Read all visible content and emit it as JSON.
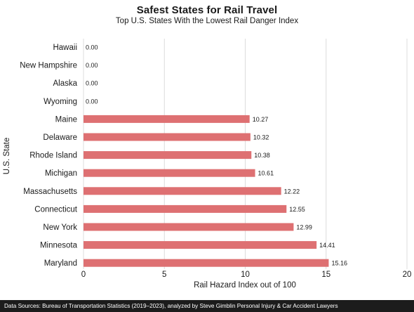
{
  "chart_data": {
    "type": "bar",
    "orientation": "horizontal",
    "title": "Safest States for Rail Travel",
    "subtitle": "Top U.S. States With the Lowest Rail Danger Index",
    "xlabel": "Rail Hazard Index out of 100",
    "ylabel": "U.S. State",
    "xlim": [
      0,
      20
    ],
    "xticks": [
      "0",
      "5",
      "10",
      "15",
      "20"
    ],
    "grid": "vertical",
    "bar_color": "#de7072",
    "categories": [
      "Hawaii",
      "New Hampshire",
      "Alaska",
      "Wyoming",
      "Maine",
      "Delaware",
      "Rhode Island",
      "Michigan",
      "Massachusetts",
      "Connecticut",
      "New York",
      "Minnesota",
      "Maryland"
    ],
    "values": [
      0.0,
      0.0,
      0.0,
      0.0,
      10.27,
      10.32,
      10.38,
      10.61,
      12.22,
      12.55,
      12.99,
      14.41,
      15.16
    ],
    "value_labels": [
      "0.00",
      "0.00",
      "0.00",
      "0.00",
      "10.27",
      "10.32",
      "10.38",
      "10.61",
      "12.22",
      "12.55",
      "12.99",
      "14.41",
      "15.16"
    ]
  },
  "source": "Data Sources: Bureau of Transportation Statistics (2019–2023), analyzed by Steve Gimblin Personal Injury & Car Accident Lawyers"
}
